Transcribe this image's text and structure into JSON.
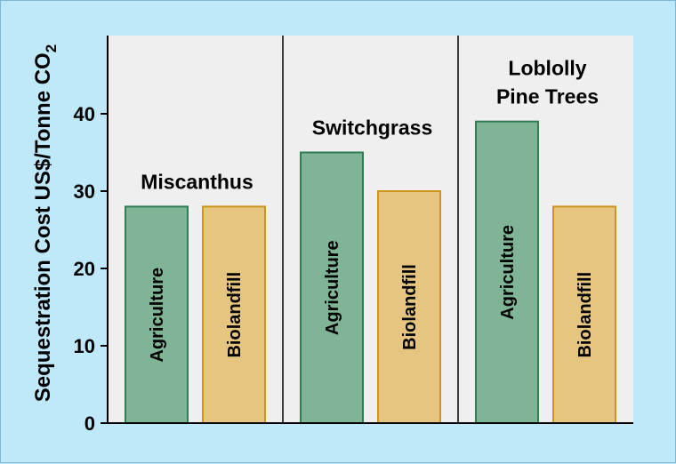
{
  "chart_data": {
    "type": "bar",
    "ylabel": "Sequestration Cost US$/Tonne CO",
    "ylabel_subscript": "2",
    "ylim": [
      0,
      50
    ],
    "yticks": [
      0,
      10,
      20,
      30,
      40
    ],
    "grid": false,
    "groups": [
      {
        "title_lines": [
          "Miscanthus"
        ],
        "bars": [
          {
            "label": "Agriculture",
            "value": 28
          },
          {
            "label": "Biolandfill",
            "value": 28
          }
        ]
      },
      {
        "title_lines": [
          "Switchgrass"
        ],
        "bars": [
          {
            "label": "Agriculture",
            "value": 35
          },
          {
            "label": "Biolandfill",
            "value": 30
          }
        ]
      },
      {
        "title_lines": [
          "Loblolly",
          "Pine Trees"
        ],
        "bars": [
          {
            "label": "Agriculture",
            "value": 39
          },
          {
            "label": "Biolandfill",
            "value": 28
          }
        ]
      }
    ]
  },
  "colors": {
    "background": "#bfe8f9",
    "plot_area": "#efefef",
    "agriculture_fill": "#7fb596",
    "agriculture_stroke": "#2f7d52",
    "biolandfill_fill": "#e6c580",
    "biolandfill_stroke": "#cc9520"
  }
}
